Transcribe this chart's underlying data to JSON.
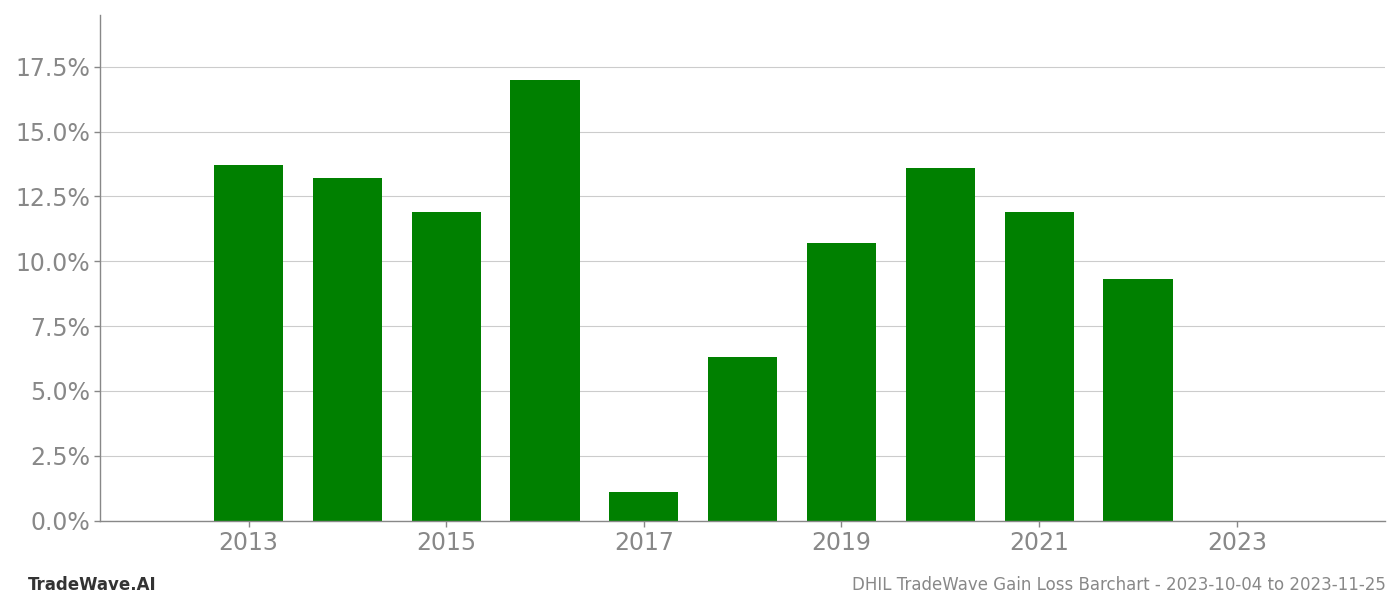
{
  "years": [
    2013,
    2014,
    2015,
    2016,
    2017,
    2018,
    2019,
    2020,
    2021,
    2022
  ],
  "values": [
    0.137,
    0.132,
    0.119,
    0.17,
    0.011,
    0.063,
    0.107,
    0.136,
    0.119,
    0.093
  ],
  "bar_color": "#008000",
  "background_color": "#ffffff",
  "ylim": [
    0,
    0.195
  ],
  "ytick_values": [
    0.0,
    0.025,
    0.05,
    0.075,
    0.1,
    0.125,
    0.15,
    0.175
  ],
  "xtick_labels": [
    "2013",
    "2015",
    "2017",
    "2019",
    "2021",
    "2023"
  ],
  "xtick_positions": [
    2013,
    2015,
    2017,
    2019,
    2021,
    2023
  ],
  "footer_left": "TradeWave.AI",
  "footer_right": "DHIL TradeWave Gain Loss Barchart - 2023-10-04 to 2023-11-25",
  "grid_color": "#cccccc",
  "tick_color": "#888888",
  "spine_color": "#888888",
  "tick_labelsize": 17,
  "footer_fontsize": 12
}
